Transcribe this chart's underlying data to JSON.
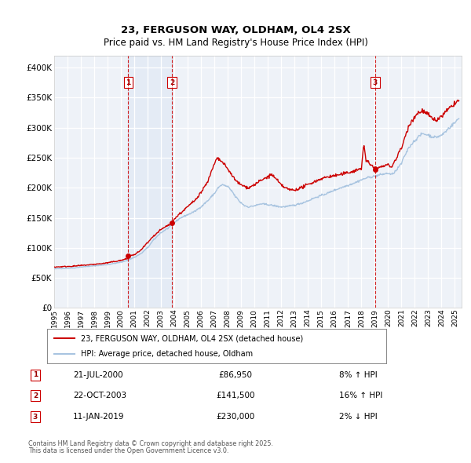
{
  "title": "23, FERGUSON WAY, OLDHAM, OL4 2SX",
  "subtitle": "Price paid vs. HM Land Registry's House Price Index (HPI)",
  "legend_line1": "23, FERGUSON WAY, OLDHAM, OL4 2SX (detached house)",
  "legend_line2": "HPI: Average price, detached house, Oldham",
  "footer1": "Contains HM Land Registry data © Crown copyright and database right 2025.",
  "footer2": "This data is licensed under the Open Government Licence v3.0.",
  "transactions": [
    {
      "num": 1,
      "date": "21-JUL-2000",
      "year": 2000.55,
      "price": 86950,
      "hpi_pct": "8% ↑ HPI"
    },
    {
      "num": 2,
      "date": "22-OCT-2003",
      "year": 2003.81,
      "price": 141500,
      "hpi_pct": "16% ↑ HPI"
    },
    {
      "num": 3,
      "date": "11-JAN-2019",
      "year": 2019.03,
      "price": 230000,
      "hpi_pct": "2% ↓ HPI"
    }
  ],
  "hpi_color": "#a8c4e0",
  "price_color": "#cc0000",
  "vline_color": "#cc0000",
  "background_color": "#eef2f8",
  "grid_color": "#ffffff",
  "ylim": [
    0,
    420000
  ],
  "xlim_start": 1995,
  "xlim_end": 2025.5,
  "yticks": [
    0,
    50000,
    100000,
    150000,
    200000,
    250000,
    300000,
    350000,
    400000
  ],
  "ytick_labels": [
    "£0",
    "£50K",
    "£100K",
    "£150K",
    "£200K",
    "£250K",
    "£300K",
    "£350K",
    "£400K"
  ],
  "xticks": [
    1995,
    1996,
    1997,
    1998,
    1999,
    2000,
    2001,
    2002,
    2003,
    2004,
    2005,
    2006,
    2007,
    2008,
    2009,
    2010,
    2011,
    2012,
    2013,
    2014,
    2015,
    2016,
    2017,
    2018,
    2019,
    2020,
    2021,
    2022,
    2023,
    2024,
    2025
  ]
}
